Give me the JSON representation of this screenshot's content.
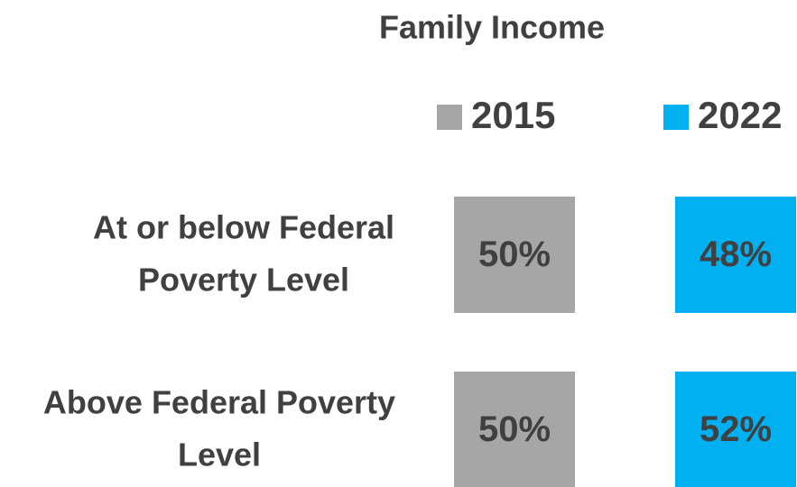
{
  "chart_data": {
    "type": "table",
    "title": "Family Income",
    "categories": [
      [
        "At or below Federal",
        "Poverty Level"
      ],
      [
        "Above Federal Poverty",
        "Level"
      ]
    ],
    "series": [
      {
        "name": "2015",
        "color": "#a6a6a6",
        "values": [
          50,
          50
        ],
        "value_labels": [
          "50%",
          "50%"
        ]
      },
      {
        "name": "2022",
        "color": "#00b0f0",
        "values": [
          48,
          52
        ],
        "value_labels": [
          "48%",
          "52%"
        ]
      }
    ]
  }
}
